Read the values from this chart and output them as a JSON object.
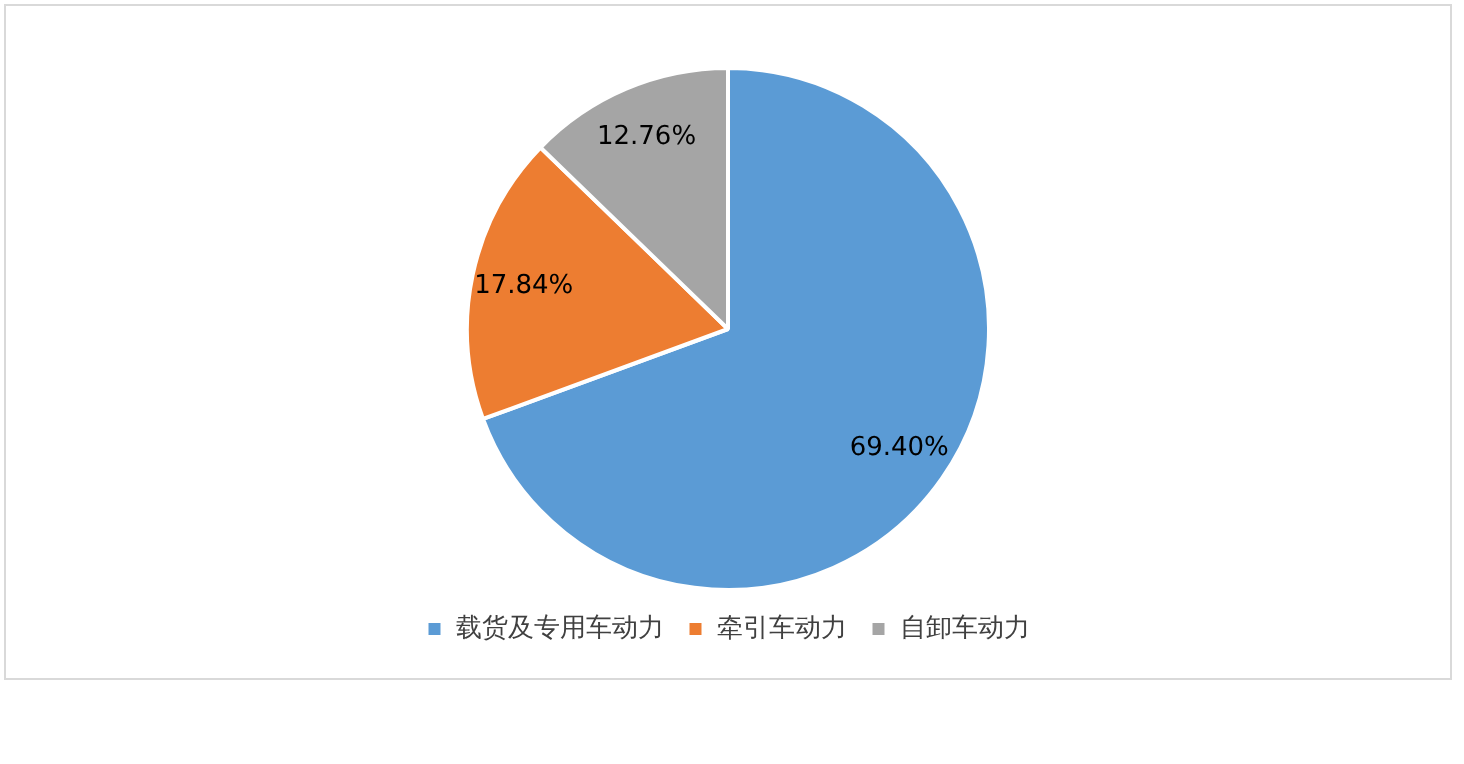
{
  "chart_data": {
    "type": "pie",
    "categories": [
      "载货及专用车动力",
      "牵引车动力",
      "自卸车动力"
    ],
    "values": [
      69.4,
      17.84,
      12.76
    ],
    "colors": [
      "#5b9bd5",
      "#ed7d31",
      "#a5a5a5"
    ],
    "value_labels": [
      "69.40%",
      "17.84%",
      "12.76%"
    ],
    "legend": "bottom"
  }
}
